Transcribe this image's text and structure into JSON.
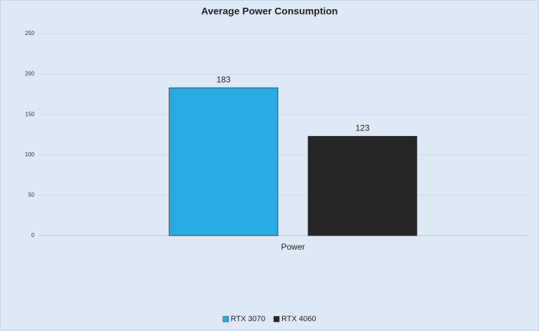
{
  "chart_data": {
    "type": "bar",
    "title": "Average Power Consumption",
    "categories": [
      "Power"
    ],
    "series": [
      {
        "name": "RTX 3070",
        "color": "#29abe2",
        "values": [
          183
        ]
      },
      {
        "name": "RTX 4060",
        "color": "#262626",
        "values": [
          123
        ]
      }
    ],
    "ylim": [
      0,
      250
    ],
    "yticks": [
      0,
      50,
      100,
      150,
      200,
      250
    ],
    "grid": true,
    "legend": "bottom"
  }
}
